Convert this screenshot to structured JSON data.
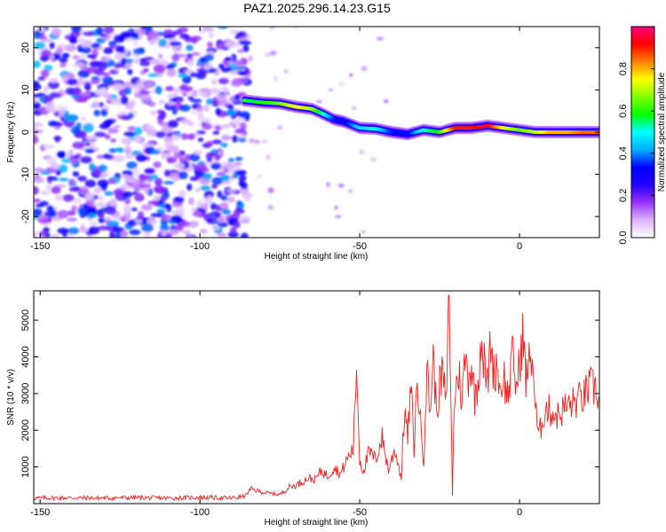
{
  "chart_data": [
    {
      "type": "heatmap",
      "title": "PAZ1.2025.296.14.23.G15",
      "xlabel": "Height of straight line (km)",
      "ylabel": "Frequency (Hz)",
      "xlim": [
        -152,
        25
      ],
      "ylim": [
        -25,
        25
      ],
      "xticks": [
        -150,
        -100,
        -50,
        0
      ],
      "yticks": [
        -20,
        -10,
        0,
        10,
        20
      ],
      "noise_region_x": [
        -152,
        -85
      ],
      "signal_ridge": {
        "x": [
          -86,
          -80,
          -75,
          -70,
          -65,
          -62,
          -58,
          -55,
          -50,
          -45,
          -40,
          -35,
          -30,
          -25,
          -20,
          -15,
          -10,
          -5,
          0,
          5,
          10,
          15,
          20,
          25
        ],
        "freq": [
          7.5,
          7.0,
          6.8,
          6.0,
          5.5,
          4.5,
          3.0,
          2.5,
          1.0,
          0.8,
          0.0,
          -0.5,
          0.5,
          0.0,
          1.0,
          1.0,
          1.5,
          1.0,
          0.5,
          0.0,
          0.0,
          0.0,
          0.0,
          0.0
        ],
        "amplitude": [
          0.55,
          0.6,
          0.65,
          0.75,
          0.7,
          0.55,
          0.35,
          0.3,
          0.45,
          0.5,
          0.35,
          0.3,
          0.5,
          0.6,
          0.9,
          0.9,
          0.95,
          0.75,
          0.65,
          0.7,
          0.8,
          0.8,
          0.85,
          0.85
        ]
      },
      "colorbar": {
        "label": "Normalized spectral amplitude",
        "range": [
          0,
          1
        ],
        "ticks": [
          "0.0",
          "0.2",
          "0.4",
          "0.6",
          "0.8"
        ],
        "tick_values": [
          0.0,
          0.2,
          0.4,
          0.6,
          0.8
        ],
        "colors": [
          "#ffffff",
          "#d9b3ff",
          "#9a33ff",
          "#2200ff",
          "#0000ff",
          "#00b0ff",
          "#00ffff",
          "#00ff00",
          "#80ff00",
          "#ffff00",
          "#ff8000",
          "#ff0000",
          "#ff0080"
        ]
      }
    },
    {
      "type": "line",
      "xlabel": "Height of straight line (km)",
      "ylabel": "SNR (10 * v/v)",
      "xlim": [
        -152,
        25
      ],
      "ylim": [
        0,
        5800
      ],
      "xticks": [
        -150,
        -100,
        -50,
        0
      ],
      "yticks": [
        1000,
        2000,
        3000,
        4000,
        5000
      ],
      "series": [
        {
          "name": "SNR",
          "color": "#ee2222",
          "x": [
            -152,
            -140,
            -130,
            -120,
            -110,
            -100,
            -95,
            -90,
            -86,
            -84,
            -80,
            -75,
            -72,
            -70,
            -66,
            -64,
            -62,
            -60,
            -58,
            -56,
            -54,
            -52,
            -51,
            -50,
            -49,
            -47,
            -45,
            -43,
            -41,
            -39,
            -37,
            -36,
            -35,
            -34,
            -33,
            -32,
            -31,
            -30,
            -29,
            -28,
            -27,
            -26,
            -25,
            -24,
            -23,
            -22,
            -21.5,
            -21,
            -20.5,
            -20,
            -19,
            -18,
            -17,
            -16,
            -15,
            -14,
            -13,
            -12,
            -11,
            -10,
            -9,
            -8,
            -7,
            -6,
            -5,
            -4,
            -3,
            -2,
            -1,
            0,
            1,
            2,
            3,
            4,
            5,
            6,
            7,
            8,
            10,
            12,
            14,
            16,
            18,
            20,
            22,
            24,
            25
          ],
          "y": [
            150,
            160,
            150,
            165,
            150,
            170,
            160,
            150,
            200,
            400,
            300,
            250,
            450,
            500,
            700,
            650,
            900,
            750,
            1000,
            800,
            1200,
            1500,
            3800,
            1200,
            900,
            1400,
            1200,
            1800,
            900,
            1500,
            700,
            2600,
            1800,
            3200,
            1500,
            3400,
            2200,
            1200,
            3700,
            2500,
            4000,
            2500,
            3200,
            3600,
            2600,
            5800,
            3000,
            200,
            2700,
            3100,
            3600,
            2800,
            4000,
            3500,
            3800,
            2900,
            3300,
            4600,
            3800,
            3200,
            4500,
            3500,
            3900,
            3000,
            3600,
            2900,
            3300,
            4100,
            3100,
            3800,
            4600,
            3400,
            3800,
            4100,
            2600,
            1800,
            2200,
            2600,
            2500,
            2400,
            2600,
            2700,
            2800,
            2900,
            3200,
            3100,
            2900
          ]
        }
      ]
    }
  ]
}
